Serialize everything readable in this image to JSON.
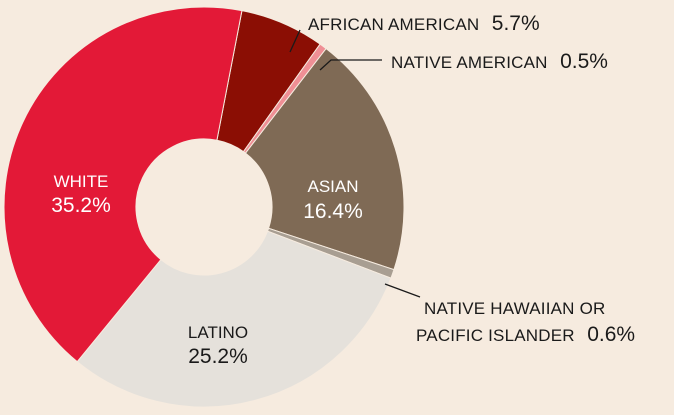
{
  "chart_data": {
    "type": "pie",
    "slices": [
      {
        "label": "AFRICAN AMERICAN",
        "value": 5.7,
        "display": "5.7%",
        "color": "#8b0e04"
      },
      {
        "label": "NATIVE AMERICAN",
        "value": 0.5,
        "display": "0.5%",
        "color": "#ef8f95"
      },
      {
        "label": "ASIAN",
        "value": 16.4,
        "display": "16.4%",
        "color": "#7f6a55"
      },
      {
        "label": "NATIVE HAWAIIAN OR PACIFIC ISLANDER",
        "value": 0.6,
        "display": "0.6%",
        "color": "#a89e92"
      },
      {
        "label": "LATINO",
        "value": 25.2,
        "display": "25.2%",
        "color": "#e5e1db"
      },
      {
        "label": "WHITE",
        "value": 35.2,
        "display": "35.2%",
        "color": "#e31937"
      }
    ],
    "labels": {
      "african_american_name": "AFRICAN AMERICAN",
      "native_american_name": "NATIVE AMERICAN",
      "nhpi_line1": "NATIVE HAWAIIAN OR",
      "nhpi_line2": "PACIFIC ISLANDER"
    }
  }
}
